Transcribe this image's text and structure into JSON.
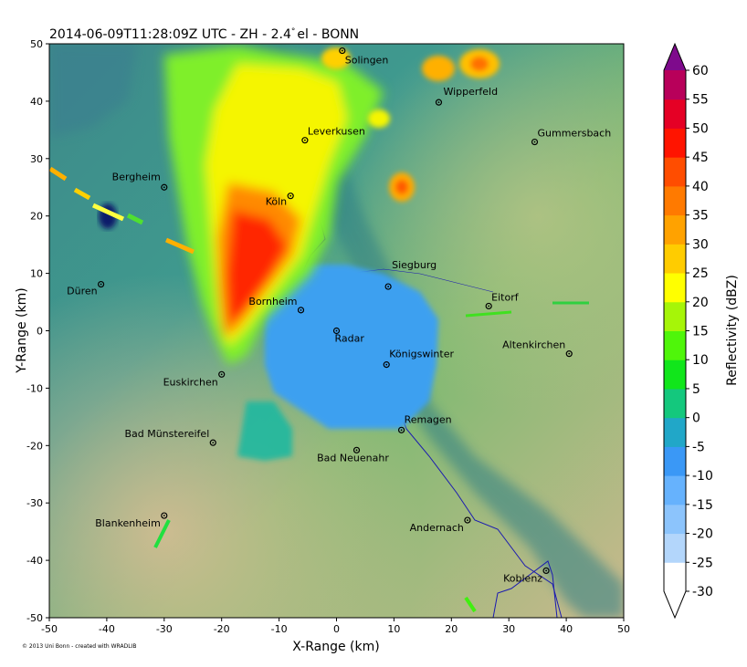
{
  "chart_data": {
    "type": "heatmap",
    "title": "2014-06-09T11:28:09Z UTC - ZH - 2.4",
    "title_suffix": "el - BONN",
    "xlabel": "X-Range (km)",
    "ylabel": "Y-Range (km)",
    "xlim": [
      -50,
      50
    ],
    "ylim": [
      -50,
      50
    ],
    "xticks": [
      -50,
      -40,
      -30,
      -20,
      -10,
      0,
      10,
      20,
      30,
      40,
      50
    ],
    "yticks": [
      -50,
      -40,
      -30,
      -20,
      -10,
      0,
      10,
      20,
      30,
      40,
      50
    ],
    "colorbar": {
      "label": "Reflectivity (dBZ)",
      "ticks": [
        -30,
        -25,
        -20,
        -15,
        -10,
        -5,
        0,
        5,
        10,
        15,
        20,
        25,
        30,
        35,
        40,
        45,
        50,
        55,
        60
      ],
      "colors": [
        "#ffffff",
        "#b3d6fb",
        "#8cc4fc",
        "#66b2fd",
        "#3a98f6",
        "#21a7c8",
        "#14c87d",
        "#11e61b",
        "#4ff60a",
        "#a6f508",
        "#ffff00",
        "#ffcc00",
        "#ffa200",
        "#ff7a00",
        "#ff4d00",
        "#ff1400",
        "#e50025",
        "#b8005a",
        "#7e0a8c"
      ]
    },
    "places": [
      {
        "name": "Solingen",
        "x": 1,
        "y": 48.8
      },
      {
        "name": "Wipperfeld",
        "x": 17.8,
        "y": 39.8
      },
      {
        "name": "Leverkusen",
        "x": -5.5,
        "y": 33.2
      },
      {
        "name": "Gummersbach",
        "x": 34.5,
        "y": 32.9
      },
      {
        "name": "Bergheim",
        "x": -30,
        "y": 25
      },
      {
        "name": "Köln",
        "x": -8,
        "y": 23.5
      },
      {
        "name": "Düren",
        "x": -41,
        "y": 8.1
      },
      {
        "name": "Siegburg",
        "x": 9,
        "y": 7.7
      },
      {
        "name": "Eitorf",
        "x": 26.5,
        "y": 4.3
      },
      {
        "name": "Bornheim",
        "x": -6.2,
        "y": 3.6
      },
      {
        "name": "Radar",
        "x": 0,
        "y": 0
      },
      {
        "name": "Altenkirchen",
        "x": 40.5,
        "y": -4
      },
      {
        "name": "Königswinter",
        "x": 8.7,
        "y": -5.9
      },
      {
        "name": "Euskirchen",
        "x": -20,
        "y": -7.6
      },
      {
        "name": "Remagen",
        "x": 11.3,
        "y": -17.3
      },
      {
        "name": "Bad Münstereifel",
        "x": -21.5,
        "y": -19.5
      },
      {
        "name": "Bad Neuenahr",
        "x": 3.5,
        "y": -20.8
      },
      {
        "name": "Blankenheim",
        "x": -30,
        "y": -32.2
      },
      {
        "name": "Andernach",
        "x": 22.8,
        "y": -33
      },
      {
        "name": "Koblenz",
        "x": 36.5,
        "y": -41.8
      }
    ]
  },
  "credit": "© 2013 Uni Bonn - created with WRADLIB"
}
